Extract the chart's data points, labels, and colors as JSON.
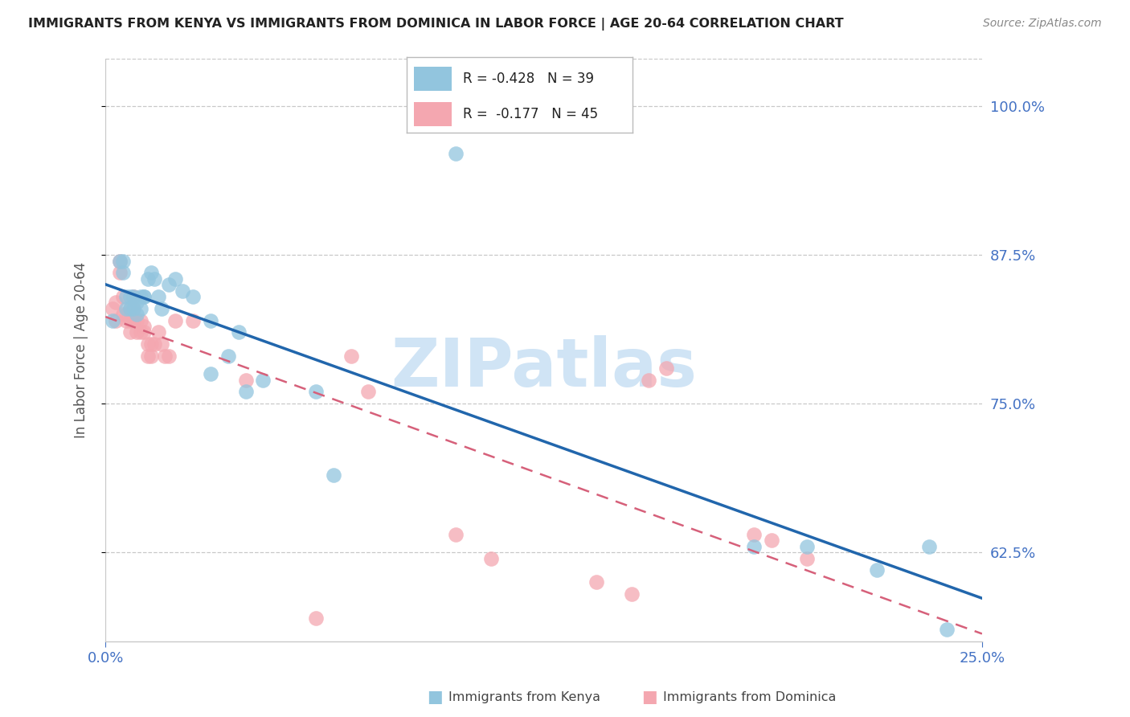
{
  "title": "IMMIGRANTS FROM KENYA VS IMMIGRANTS FROM DOMINICA IN LABOR FORCE | AGE 20-64 CORRELATION CHART",
  "source": "Source: ZipAtlas.com",
  "ylabel": "In Labor Force | Age 20-64",
  "xlim": [
    0.0,
    0.25
  ],
  "ylim": [
    0.55,
    1.04
  ],
  "yticks": [
    0.625,
    0.75,
    0.875,
    1.0
  ],
  "ytick_labels": [
    "62.5%",
    "75.0%",
    "87.5%",
    "100.0%"
  ],
  "xticks": [
    0.0,
    0.25
  ],
  "xtick_labels": [
    "0.0%",
    "25.0%"
  ],
  "kenya_color": "#92c5de",
  "dominica_color": "#f4a7b0",
  "kenya_line_color": "#2166ac",
  "dominica_line_color": "#d6607a",
  "watermark": "ZIPatlas",
  "watermark_color": "#d0e4f5",
  "grid_color": "#c8c8c8",
  "background_color": "#ffffff",
  "title_color": "#222222",
  "axis_label_color": "#555555",
  "tick_color_right": "#4472c4",
  "tick_color_bottom": "#4472c4",
  "legend_kenya_R": "-0.428",
  "legend_kenya_N": "39",
  "legend_dominica_R": "-0.177",
  "legend_dominica_N": "45",
  "kenya_x": [
    0.002,
    0.004,
    0.005,
    0.005,
    0.006,
    0.006,
    0.007,
    0.007,
    0.008,
    0.008,
    0.009,
    0.009,
    0.01,
    0.01,
    0.011,
    0.011,
    0.012,
    0.013,
    0.014,
    0.015,
    0.016,
    0.018,
    0.02,
    0.022,
    0.025,
    0.03,
    0.03,
    0.035,
    0.038,
    0.04,
    0.045,
    0.06,
    0.065,
    0.1,
    0.185,
    0.2,
    0.22,
    0.235,
    0.24
  ],
  "kenya_y": [
    0.82,
    0.87,
    0.87,
    0.86,
    0.84,
    0.83,
    0.84,
    0.83,
    0.84,
    0.83,
    0.835,
    0.825,
    0.84,
    0.83,
    0.84,
    0.84,
    0.855,
    0.86,
    0.855,
    0.84,
    0.83,
    0.85,
    0.855,
    0.845,
    0.84,
    0.82,
    0.775,
    0.79,
    0.81,
    0.76,
    0.77,
    0.76,
    0.69,
    0.96,
    0.63,
    0.63,
    0.61,
    0.63,
    0.56
  ],
  "dominica_x": [
    0.002,
    0.003,
    0.003,
    0.004,
    0.004,
    0.005,
    0.005,
    0.006,
    0.006,
    0.007,
    0.007,
    0.007,
    0.008,
    0.008,
    0.008,
    0.009,
    0.009,
    0.01,
    0.01,
    0.011,
    0.011,
    0.012,
    0.012,
    0.013,
    0.013,
    0.014,
    0.015,
    0.016,
    0.017,
    0.018,
    0.02,
    0.025,
    0.04,
    0.06,
    0.07,
    0.075,
    0.1,
    0.11,
    0.14,
    0.15,
    0.155,
    0.16,
    0.185,
    0.19,
    0.2
  ],
  "dominica_y": [
    0.83,
    0.835,
    0.82,
    0.87,
    0.86,
    0.84,
    0.825,
    0.825,
    0.82,
    0.83,
    0.82,
    0.81,
    0.84,
    0.83,
    0.82,
    0.82,
    0.81,
    0.82,
    0.81,
    0.815,
    0.81,
    0.8,
    0.79,
    0.8,
    0.79,
    0.8,
    0.81,
    0.8,
    0.79,
    0.79,
    0.82,
    0.82,
    0.77,
    0.57,
    0.79,
    0.76,
    0.64,
    0.62,
    0.6,
    0.59,
    0.77,
    0.78,
    0.64,
    0.635,
    0.62
  ]
}
